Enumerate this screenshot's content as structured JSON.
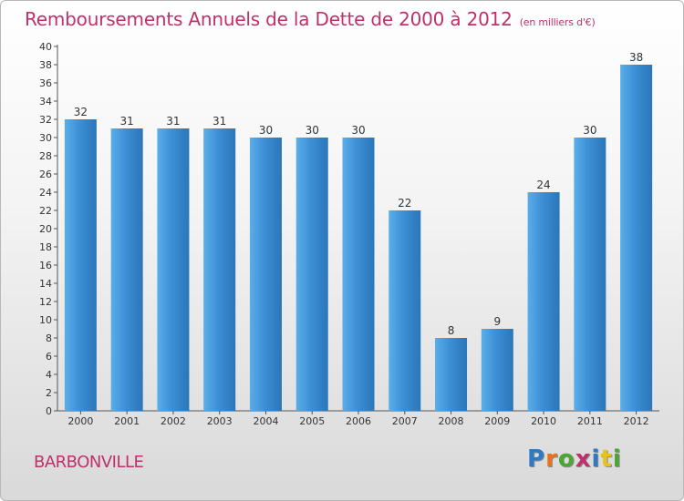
{
  "header": {
    "title": "Remboursements Annuels de la Dette de 2000 à 2012",
    "subtitle": "(en milliers d'€)"
  },
  "commune": "BARBONVILLE",
  "logo": {
    "letters": [
      "P",
      "r",
      "o",
      "x",
      "i",
      "t",
      "i"
    ],
    "colors": [
      "#2e7bc4",
      "#e8731c",
      "#4aa832",
      "#c0306b",
      "#2e7bc4",
      "#e8c21c",
      "#4aa832"
    ]
  },
  "colors": {
    "bar": "#3d8fd6",
    "bar_light": "#5aaee8",
    "bar_dark": "#2a76b8",
    "title": "#c0306b"
  },
  "chart_data": {
    "type": "bar",
    "title": "Remboursements Annuels de la Dette de 2000 à 2012",
    "ylabel": "en milliers d'€",
    "xlabel": "",
    "categories": [
      "2000",
      "2001",
      "2002",
      "2003",
      "2004",
      "2005",
      "2006",
      "2007",
      "2008",
      "2009",
      "2010",
      "2011",
      "2012"
    ],
    "values": [
      32,
      31,
      31,
      31,
      30,
      30,
      30,
      22,
      8,
      9,
      24,
      30,
      38
    ],
    "ylim": [
      0,
      40
    ],
    "ytick_step": 2,
    "grid": false,
    "data_labels": true
  }
}
